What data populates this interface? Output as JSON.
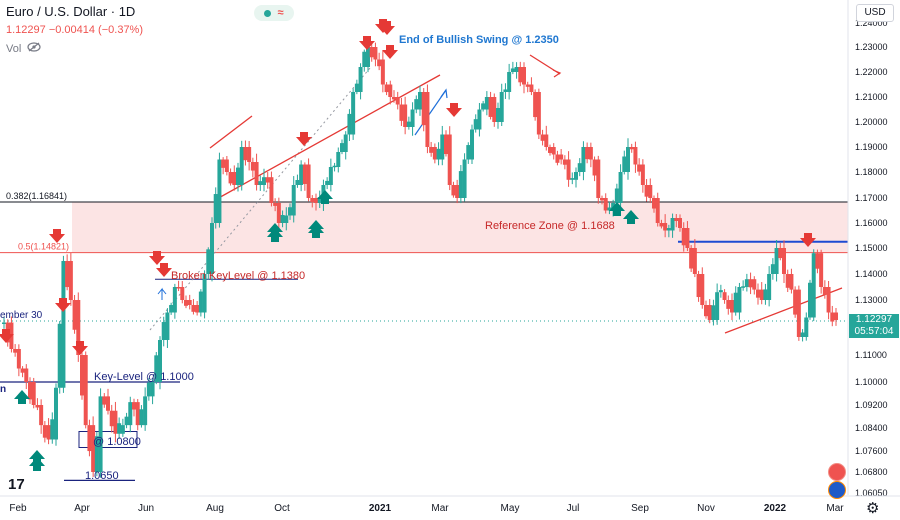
{
  "header": {
    "symbol": "Euro / U.S. Dollar · 1D",
    "quote": "1.12297  −0.00414 (−0.37%)",
    "vol_label": "Vol",
    "currency_button": "USD",
    "price_tag_value": "1.12297",
    "price_tag_countdown": "05:57:04"
  },
  "chart_data": {
    "type": "line",
    "title": "",
    "xlabel": "",
    "ylabel": "",
    "ylim": [
      1.0605,
      1.24
    ],
    "x_tick_labels": [
      "Feb",
      "Apr",
      "Jun",
      "Aug",
      "Oct",
      "2021",
      "Mar",
      "May",
      "Jul",
      "Sep",
      "Nov",
      "2022",
      "Mar"
    ],
    "y_tick_labels": [
      "1.24000",
      "1.23000",
      "1.22000",
      "1.21000",
      "1.20000",
      "1.19000",
      "1.18000",
      "1.17000",
      "1.16000",
      "1.15000",
      "1.14000",
      "1.13000",
      "1.12000",
      "1.11000",
      "1.10000",
      "1.09200",
      "1.08400",
      "1.07600",
      "1.06800",
      "1.06050"
    ],
    "y_tick_values": [
      1.24,
      1.23,
      1.22,
      1.21,
      1.2,
      1.19,
      1.18,
      1.17,
      1.16,
      1.15,
      1.14,
      1.13,
      1.12,
      1.11,
      1.1,
      1.092,
      1.084,
      1.076,
      1.068,
      1.0605
    ],
    "series": [
      {
        "values": [
          1.121,
          1.112,
          1.105,
          1.1,
          1.092,
          1.085,
          1.08,
          1.098,
          1.145,
          1.13,
          1.11,
          1.085,
          1.068,
          1.095,
          1.09,
          1.082,
          1.085,
          1.093,
          1.085,
          1.095,
          1.1,
          1.115,
          1.125,
          1.135,
          1.13,
          1.128,
          1.125,
          1.14,
          1.16,
          1.185,
          1.18,
          1.175,
          1.19,
          1.184,
          1.175,
          1.178,
          1.168,
          1.16,
          1.163,
          1.175,
          1.183,
          1.17,
          1.168,
          1.175,
          1.182,
          1.188,
          1.195,
          1.212,
          1.222,
          1.23,
          1.225,
          1.215,
          1.21,
          1.207,
          1.198,
          1.205,
          1.212,
          1.19,
          1.185,
          1.195,
          1.175,
          1.17,
          1.185,
          1.197,
          1.205,
          1.21,
          1.2,
          1.212,
          1.22,
          1.222,
          1.215,
          1.212,
          1.195,
          1.19,
          1.187,
          1.185,
          1.177,
          1.18,
          1.19,
          1.185,
          1.17,
          1.165,
          1.168,
          1.18,
          1.19,
          1.183,
          1.175,
          1.17,
          1.16,
          1.157,
          1.162,
          1.158,
          1.15,
          1.14,
          1.128,
          1.122,
          1.133,
          1.13,
          1.125,
          1.135,
          1.138,
          1.134,
          1.13,
          1.14,
          1.15,
          1.14,
          1.134,
          1.116,
          1.123,
          1.148,
          1.135,
          1.125,
          1.122
        ]
      }
    ],
    "horizontal_lines": [
      {
        "label": "0.382(1.16841)",
        "value": 1.16841
      },
      {
        "label": "0.5(1.14821)",
        "value": 1.14821
      }
    ],
    "reference_zone": {
      "label": "Reference Zone @ 1.1688",
      "from": 1.14821,
      "to": 1.16841
    },
    "annotations": {
      "end_bullish_swing": "End of Bullish Swing @ 1.2350",
      "broken_key_level": "Broken KeyLevel @ 1.1380",
      "key_level": "Key-Level @ 1.1000",
      "level_1080": "@ 1.0800",
      "level_1065": "1.0650",
      "september_30": "ember 30",
      "edge_label": "n"
    },
    "levels": {
      "broken_key_level": 1.138,
      "key_level": 1.1,
      "level_1080": 1.08,
      "level_1065": 1.065,
      "blue_resistance": 1.1525
    },
    "sell_arrows_count": 13,
    "buy_arrows_count": 10
  },
  "colors": {
    "bull": "#26a69a",
    "bear": "#ef5350",
    "blue_text": "#1f77d0",
    "zone": "#fce4e4",
    "annot_red": "#e53935",
    "annot_blue": "#1a237e"
  },
  "icons": {
    "visibility": "eye-off-icon",
    "tv_logo": "tradingview-logo-icon",
    "settings": "gear-icon"
  }
}
